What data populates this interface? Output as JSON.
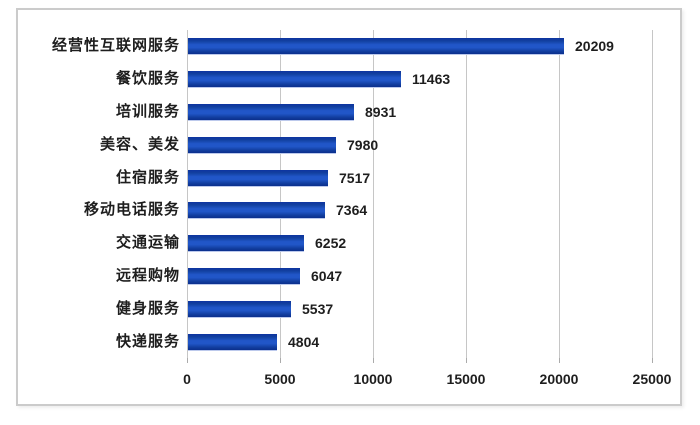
{
  "chart_data": {
    "type": "bar",
    "orientation": "horizontal",
    "title": "",
    "xlabel": "",
    "ylabel": "",
    "categories": [
      "经营性互联网服务",
      "餐饮服务",
      "培训服务",
      "美容、美发",
      "住宿服务",
      "移动电话服务",
      "交通运输",
      "远程购物",
      "健身服务",
      "快递服务"
    ],
    "values": [
      20209,
      11463,
      8931,
      7980,
      7517,
      7364,
      6252,
      6047,
      5537,
      4804
    ],
    "data_labels": [
      "20209",
      "11463",
      "8931",
      "7980",
      "7517",
      "7364",
      "6252",
      "6047",
      "5537",
      "4804"
    ],
    "x_ticks": [
      0,
      5000,
      10000,
      15000,
      20000,
      25000
    ],
    "x_tick_labels": [
      "0",
      "5000",
      "10000",
      "15000",
      "20000",
      "25000"
    ],
    "xlim": [
      0,
      25000
    ],
    "grid": true,
    "legend": false,
    "colors": {
      "bar": "#1447ad",
      "bar_gradient_top": "#0d34a0",
      "bar_gradient_mid": "#2156c8",
      "bar_gradient_bottom": "#0b2f8d",
      "gridline": "#c6c6c6",
      "frame_border": "#cbcbcb",
      "text": "#1e1e1e",
      "background": "#ffffff"
    }
  }
}
